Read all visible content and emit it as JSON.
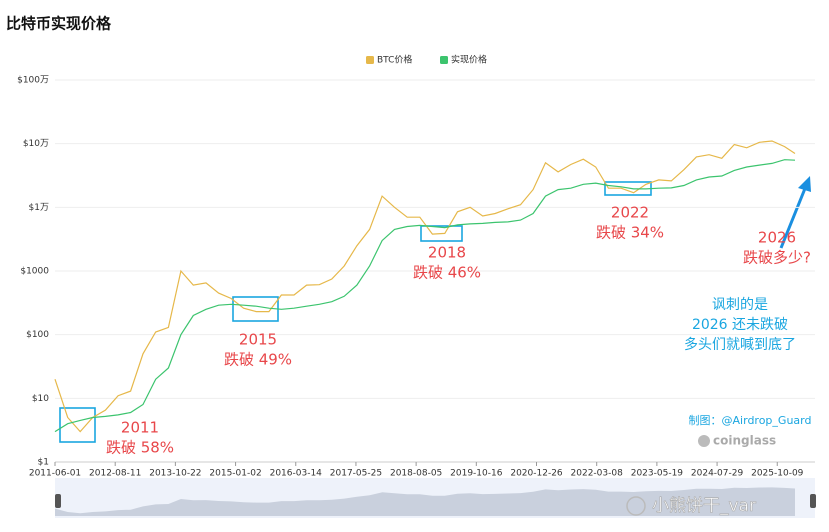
{
  "chart_data": {
    "type": "line",
    "title": "比特币实现价格",
    "log_scale": true,
    "grid": true,
    "legend": "top",
    "xlim": [
      "2011-06-01",
      "2026-07-10"
    ],
    "xticks": [
      "2011-06-01",
      "2012-08-11",
      "2013-10-22",
      "2015-01-02",
      "2016-03-14",
      "2017-05-25",
      "2018-08-05",
      "2019-10-16",
      "2020-12-26",
      "2022-03-08",
      "2023-05-19",
      "2024-07-29",
      "2025-10-09"
    ],
    "ylim": [
      1,
      1000000
    ],
    "yticks": [
      {
        "value": 1,
        "label": "$1"
      },
      {
        "value": 10,
        "label": "$10"
      },
      {
        "value": 100,
        "label": "$100"
      },
      {
        "value": 1000,
        "label": "$1000"
      },
      {
        "value": 10000,
        "label": "$1万"
      },
      {
        "value": 100000,
        "label": "$10万"
      },
      {
        "value": 1000000,
        "label": "$100万"
      }
    ],
    "x": [
      "2011-06-01",
      "2011-09-01",
      "2011-12-01",
      "2012-03-01",
      "2012-06-01",
      "2012-09-01",
      "2012-12-01",
      "2013-03-01",
      "2013-06-01",
      "2013-09-01",
      "2013-12-01",
      "2014-03-01",
      "2014-06-01",
      "2014-09-01",
      "2014-12-01",
      "2015-03-01",
      "2015-06-01",
      "2015-09-01",
      "2015-12-01",
      "2016-03-01",
      "2016-06-01",
      "2016-09-01",
      "2016-12-01",
      "2017-03-01",
      "2017-06-01",
      "2017-09-01",
      "2017-12-01",
      "2018-03-01",
      "2018-06-01",
      "2018-09-01",
      "2018-12-01",
      "2019-03-01",
      "2019-06-01",
      "2019-09-01",
      "2019-12-01",
      "2020-03-01",
      "2020-06-01",
      "2020-09-01",
      "2020-12-01",
      "2021-03-01",
      "2021-06-01",
      "2021-09-01",
      "2021-12-01",
      "2022-03-01",
      "2022-06-01",
      "2022-09-01",
      "2022-12-01",
      "2023-03-01",
      "2023-06-01",
      "2023-09-01",
      "2023-12-01",
      "2024-03-01",
      "2024-06-01",
      "2024-09-01",
      "2024-12-01",
      "2025-03-01",
      "2025-06-01",
      "2025-09-01",
      "2025-12-01",
      "2026-02-15"
    ],
    "series": [
      {
        "name": "BTC价格",
        "color": "#e6b84a",
        "values": [
          20,
          5,
          3,
          5,
          6.5,
          11,
          13,
          50,
          110,
          130,
          1000,
          600,
          650,
          450,
          370,
          260,
          230,
          230,
          420,
          420,
          600,
          610,
          750,
          1200,
          2500,
          4500,
          15000,
          10000,
          7000,
          7000,
          3800,
          3900,
          8500,
          10000,
          7300,
          8000,
          9500,
          11000,
          19000,
          50000,
          36000,
          47000,
          57000,
          43000,
          20000,
          20000,
          17000,
          23000,
          27000,
          26000,
          39000,
          62000,
          67000,
          59000,
          97000,
          86000,
          105000,
          110000,
          90000,
          70000
        ]
      },
      {
        "name": "实现价格",
        "color": "#3cc46e",
        "values": [
          3,
          4,
          4.5,
          5,
          5.2,
          5.5,
          6,
          8,
          20,
          30,
          100,
          200,
          250,
          290,
          300,
          290,
          280,
          260,
          250,
          260,
          280,
          300,
          330,
          400,
          600,
          1200,
          3000,
          4500,
          5000,
          5200,
          5000,
          4800,
          5300,
          5500,
          5600,
          5800,
          5900,
          6300,
          8000,
          15000,
          19000,
          20000,
          23000,
          24000,
          22000,
          21000,
          19500,
          19500,
          20000,
          20200,
          22000,
          27000,
          30000,
          31000,
          38000,
          43000,
          46000,
          49000,
          56000,
          55000
        ]
      }
    ],
    "annotations": [
      {
        "lines": [
          "2011",
          "跌破 58%"
        ]
      },
      {
        "lines": [
          "2015",
          "跌破 49%"
        ]
      },
      {
        "lines": [
          "2018",
          "跌破 46%"
        ]
      },
      {
        "lines": [
          "2022",
          "跌破 34%"
        ]
      },
      {
        "lines": [
          "2026",
          "跌破多少?"
        ]
      },
      {
        "lines": [
          "讽刺的是",
          "2026 还未跌破",
          "多头们就喊到底了"
        ]
      }
    ],
    "credit": "制图：@Airdrop_Guard",
    "logo": "coinglass",
    "watermark": "小熊饼干_var"
  }
}
